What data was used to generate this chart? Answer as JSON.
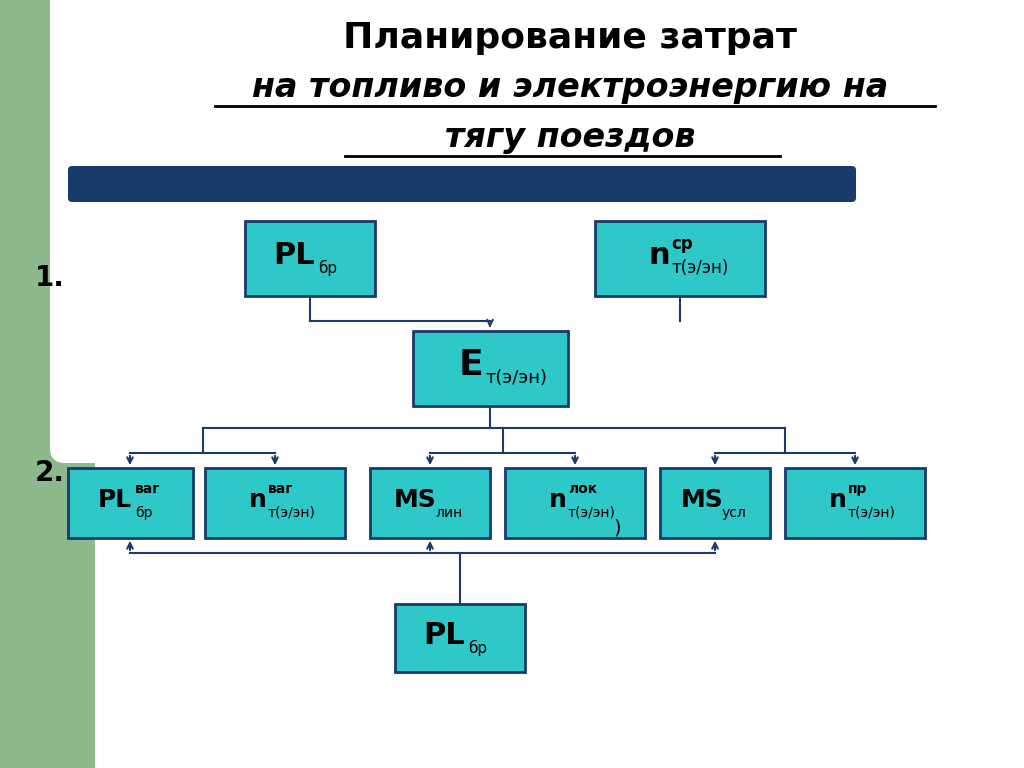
{
  "title_line1": "Планирование затрат",
  "title_line2": "на топливо и электроэнергию на",
  "title_line3": "тягу поездов",
  "bg_color": "#ffffff",
  "left_bar_color": "#8db98d",
  "box_color": "#2ec8c8",
  "box_border_color": "#1a3a6b",
  "connector_color": "#1a3a6b",
  "dark_bar_color": "#1a3a6b",
  "label1": "1.",
  "label2": "2."
}
